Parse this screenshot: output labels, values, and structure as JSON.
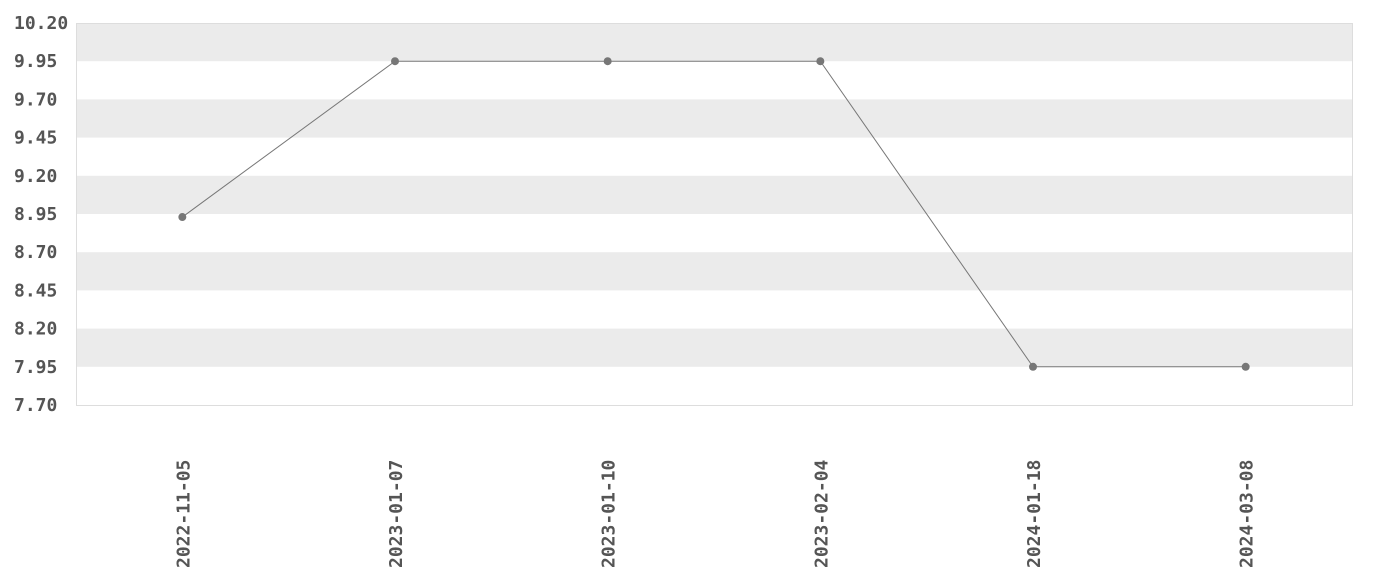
{
  "chart_data": {
    "type": "line",
    "title": "",
    "xlabel": "",
    "ylabel": "",
    "categories": [
      "2022-11-05",
      "2023-01-07",
      "2023-01-10",
      "2023-02-04",
      "2024-01-18",
      "2024-03-08"
    ],
    "series": [
      {
        "values": [
          8.93,
          9.95,
          9.95,
          9.95,
          7.95,
          7.95
        ]
      }
    ],
    "ylim": [
      7.7,
      10.2
    ],
    "yticks": [
      "7.70",
      "7.95",
      "8.20",
      "8.45",
      "8.70",
      "8.95",
      "9.20",
      "9.45",
      "9.70",
      "9.95",
      "10.20"
    ],
    "grid": "alternating horizontal bands",
    "legend": "none",
    "colors": {
      "line": "#777777",
      "marker": "#777777",
      "band": "#ebebeb",
      "text": "#555555"
    }
  }
}
